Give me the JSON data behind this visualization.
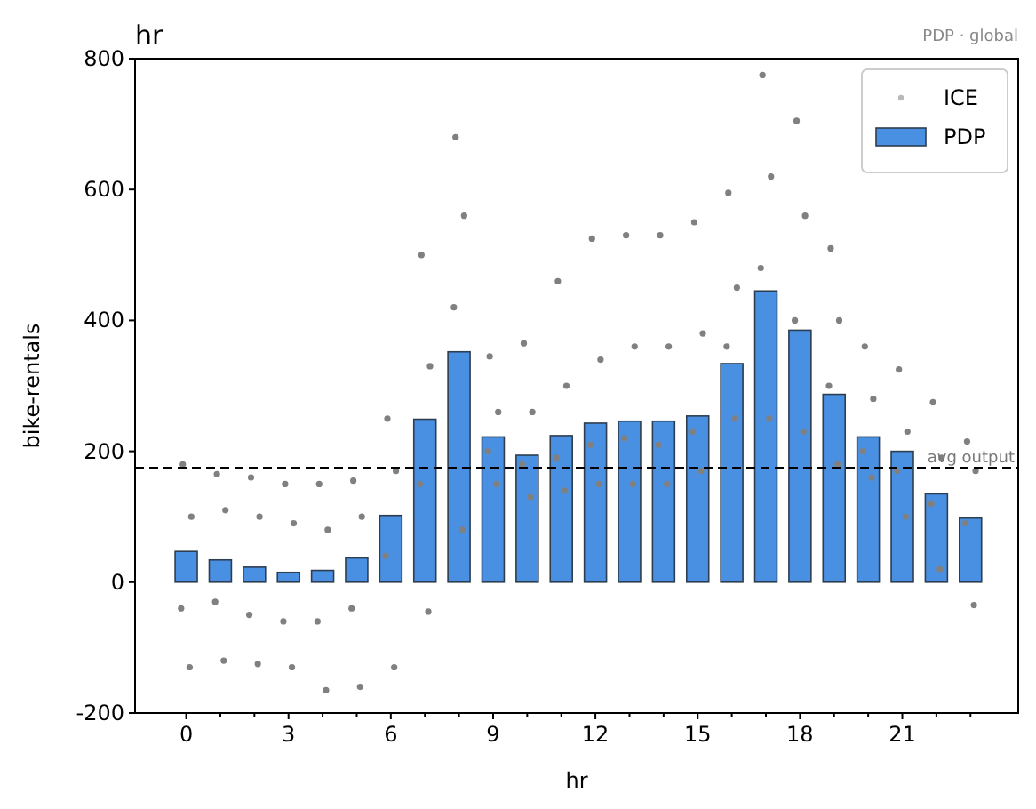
{
  "chart_data": {
    "type": "bar",
    "title": "hr",
    "annotations": [
      "PDP · global"
    ],
    "xlabel": "hr",
    "ylabel": "bike-rentals",
    "xlim": [
      -1.5,
      24.4
    ],
    "ylim": [
      -200,
      800
    ],
    "xticks": [
      0,
      {
        "value": 1,
        "label": null
      },
      {
        "value": 2,
        "label": null
      },
      3,
      {
        "value": 4,
        "label": null
      },
      {
        "value": 5,
        "label": null
      },
      6,
      {
        "value": 7,
        "label": null
      },
      {
        "value": 8,
        "label": null
      },
      9,
      {
        "value": 10,
        "label": null
      },
      {
        "value": 11,
        "label": null
      },
      12,
      {
        "value": 13,
        "label": null
      },
      {
        "value": 14,
        "label": null
      },
      15,
      {
        "value": 16,
        "label": null
      },
      {
        "value": 17,
        "label": null
      },
      18,
      {
        "value": 19,
        "label": null
      },
      {
        "value": 20,
        "label": null
      },
      21,
      {
        "value": 22,
        "label": null
      },
      {
        "value": 23,
        "label": null
      }
    ],
    "yticks": [
      -200,
      0,
      200,
      400,
      600,
      800
    ],
    "legend": "top right",
    "grid": false,
    "ref_lines": [
      {
        "axis": "y",
        "value": 175,
        "label": "avg output",
        "color": "#000000",
        "line_style": "dashed"
      }
    ],
    "series": [
      {
        "name": "ICE",
        "type": "scatter",
        "color": "#808080",
        "marker": "circle",
        "x": [
          -0.1,
          0.1,
          0.15,
          -0.15,
          0.9,
          1.1,
          1.15,
          0.85,
          1.9,
          2.1,
          2.15,
          1.85,
          2.9,
          3.1,
          3.15,
          2.85,
          3.9,
          4.1,
          4.15,
          3.85,
          4.9,
          5.1,
          5.15,
          4.85,
          5.9,
          6.1,
          6.15,
          5.85,
          6.9,
          7.1,
          7.15,
          6.85,
          7.9,
          8.1,
          8.15,
          7.85,
          8.9,
          9.1,
          9.15,
          8.85,
          9.9,
          10.1,
          10.15,
          9.85,
          10.9,
          11.1,
          11.15,
          10.85,
          11.9,
          12.1,
          12.15,
          11.85,
          12.9,
          13.1,
          13.15,
          12.85,
          13.9,
          14.1,
          14.15,
          13.85,
          14.9,
          15.1,
          15.15,
          14.85,
          15.9,
          16.1,
          16.15,
          15.85,
          16.9,
          17.1,
          17.15,
          16.85,
          17.9,
          18.1,
          18.15,
          17.85,
          18.9,
          19.1,
          19.15,
          18.85,
          19.9,
          20.1,
          20.15,
          19.85,
          20.9,
          21.1,
          21.15,
          20.85,
          21.9,
          22.1,
          22.15,
          21.85,
          22.9,
          23.1,
          23.15,
          22.85
        ],
        "values": [
          180,
          -130,
          100,
          -40,
          165,
          -120,
          110,
          -30,
          160,
          -125,
          100,
          -50,
          150,
          -130,
          90,
          -60,
          150,
          -165,
          80,
          -60,
          155,
          -160,
          100,
          -40,
          250,
          -130,
          170,
          40,
          500,
          -45,
          330,
          150,
          680,
          80,
          560,
          420,
          345,
          150,
          260,
          200,
          365,
          130,
          260,
          180,
          460,
          140,
          300,
          190,
          525,
          150,
          340,
          210,
          530,
          150,
          360,
          220,
          530,
          150,
          360,
          210,
          550,
          170,
          380,
          230,
          595,
          250,
          450,
          360,
          775,
          250,
          620,
          480,
          705,
          230,
          560,
          400,
          510,
          180,
          400,
          300,
          360,
          160,
          280,
          200,
          325,
          100,
          230,
          170,
          275,
          20,
          190,
          120,
          215,
          -35,
          170,
          90
        ]
      },
      {
        "name": "PDP",
        "color": "#4a90e2",
        "x": [
          0,
          1,
          2,
          3,
          4,
          5,
          6,
          7,
          8,
          9,
          10,
          11,
          12,
          13,
          14,
          15,
          16,
          17,
          18,
          19,
          20,
          21,
          22,
          23
        ],
        "values": [
          47,
          34,
          23,
          15,
          18,
          37,
          102,
          249,
          352,
          222,
          194,
          224,
          243,
          246,
          246,
          254,
          334,
          445,
          385,
          287,
          222,
          200,
          135,
          98
        ]
      }
    ]
  }
}
